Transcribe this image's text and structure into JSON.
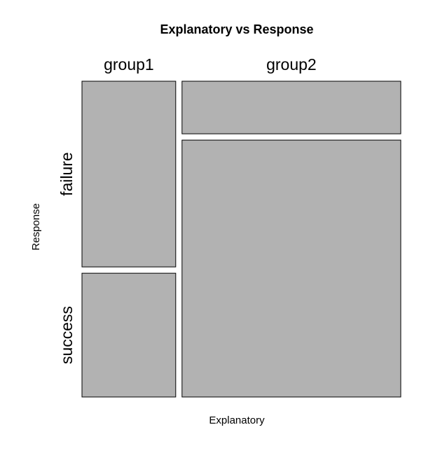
{
  "chart_data": {
    "type": "mosaic",
    "title": "Explanatory vs Response",
    "xlabel": "Explanatory",
    "ylabel": "Response",
    "x_categories": [
      "group1",
      "group2"
    ],
    "y_categories": [
      "failure",
      "success"
    ],
    "x_proportions": [
      0.3,
      0.7
    ],
    "conditional_proportions": {
      "group1": {
        "failure": 0.6,
        "success": 0.4
      },
      "group2": {
        "failure": 0.17,
        "success": 0.83
      }
    },
    "tile_color": "#b2b2b2",
    "border_color": "#000000"
  }
}
